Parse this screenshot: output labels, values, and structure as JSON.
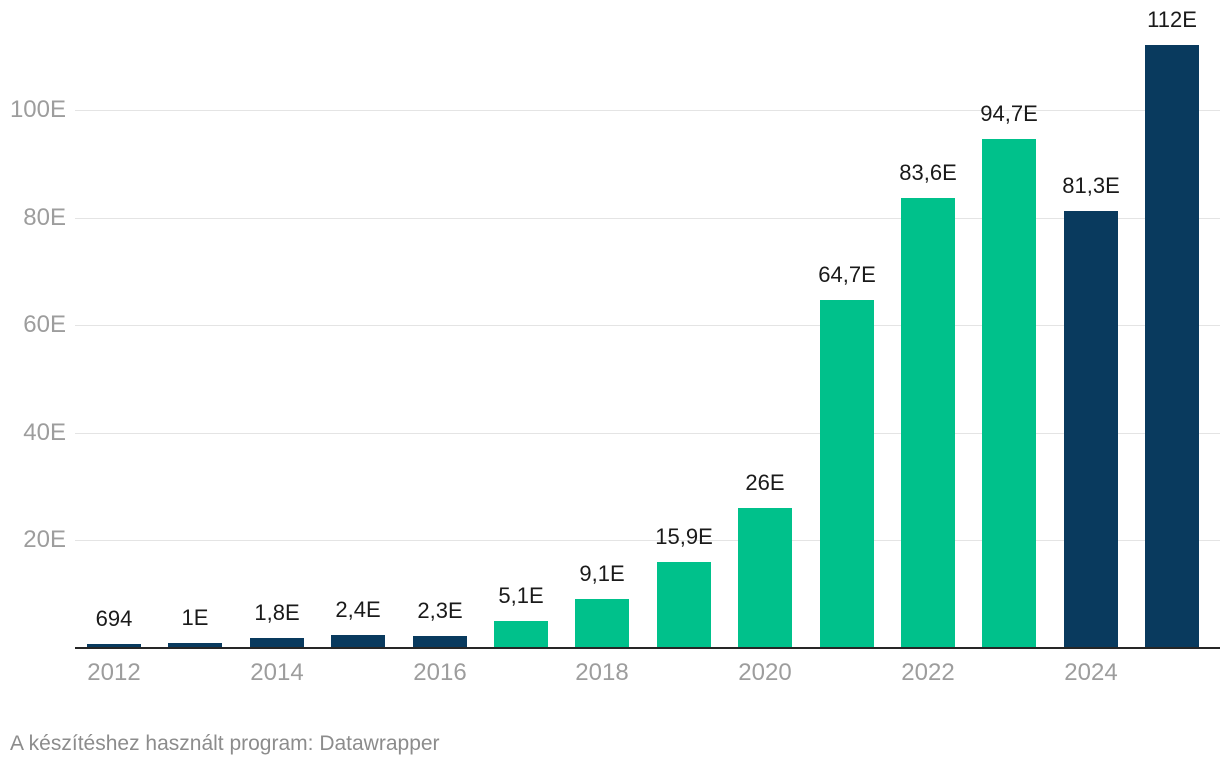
{
  "chart_data": {
    "type": "bar",
    "title": "",
    "categories": [
      "2012",
      "2013",
      "2014",
      "2015",
      "2016",
      "2017",
      "2018",
      "2019",
      "2020",
      "2021",
      "2022",
      "2023",
      "2024",
      "2025"
    ],
    "values": [
      0.694,
      1,
      1.8,
      2.4,
      2.3,
      5.1,
      9.1,
      15.9,
      26,
      64.7,
      83.6,
      94.7,
      81.3,
      112
    ],
    "bar_labels": [
      "694",
      "1E",
      "1,8E",
      "2,4E",
      "2,3E",
      "5,1E",
      "9,1E",
      "15,9E",
      "26E",
      "64,7E",
      "83,6E",
      "94,7E",
      "81,3E",
      "112E"
    ],
    "bar_colors": [
      "navy",
      "navy",
      "navy",
      "navy",
      "navy",
      "green",
      "green",
      "green",
      "green",
      "green",
      "green",
      "green",
      "navy",
      "navy"
    ],
    "yticks": [
      {
        "value": 20,
        "label": "20E"
      },
      {
        "value": 40,
        "label": "40E"
      },
      {
        "value": 60,
        "label": "60E"
      },
      {
        "value": 80,
        "label": "80E"
      },
      {
        "value": 100,
        "label": "100E"
      }
    ],
    "xticks": [
      "2012",
      "2014",
      "2016",
      "2018",
      "2020",
      "2022",
      "2024"
    ],
    "ylim": [
      0,
      120
    ],
    "grid": true,
    "legend_position": "none"
  },
  "colors": {
    "navy": "#093a5e",
    "green": "#00c18b",
    "gridline": "#e4e4e4",
    "axis_line": "#262626",
    "axis_text": "#9d9d9d",
    "value_text": "#1a1a1a",
    "footer_text": "#8c8c8c",
    "background": "#ffffff"
  },
  "footer": {
    "text": "A készítéshez használt program: Datawrapper"
  }
}
